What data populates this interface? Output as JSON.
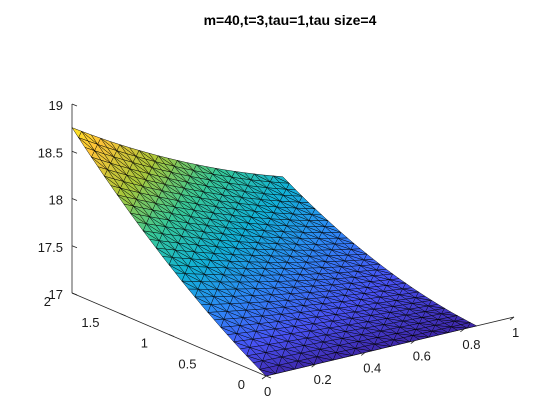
{
  "chart_data": {
    "type": "surface",
    "title": "m=40,t=3,tau=1,tau size=4",
    "xlabel": "",
    "ylabel": "",
    "zlabel": "",
    "x_axis": {
      "range": [
        0,
        1
      ],
      "ticks": [
        "0",
        "0.2",
        "0.4",
        "0.6",
        "0.8",
        "1"
      ]
    },
    "y_axis": {
      "range": [
        0,
        2
      ],
      "ticks": [
        "0",
        "0.5",
        "1",
        "1.5",
        "2"
      ]
    },
    "z_axis": {
      "range": [
        17,
        19
      ],
      "ticks": [
        "17",
        "17.5",
        "18",
        "18.5",
        "19"
      ]
    },
    "surface_domain": {
      "x": [
        0,
        0.85
      ],
      "y": [
        0,
        2
      ]
    },
    "corner_values": [
      {
        "x": 0,
        "y": 2,
        "z": 18.75
      },
      {
        "x": 0.85,
        "y": 2,
        "z": 17.7
      },
      {
        "x": 0,
        "y": 0,
        "z": 17.0
      },
      {
        "x": 0.85,
        "y": 0,
        "z": 17.0
      }
    ],
    "minimum_region": {
      "x": [
        0.3,
        0.85
      ],
      "y": [
        0,
        0.6
      ],
      "z": 17.0
    },
    "colormap": "parula",
    "mesh": "triangular",
    "edge_color": "#000000"
  }
}
